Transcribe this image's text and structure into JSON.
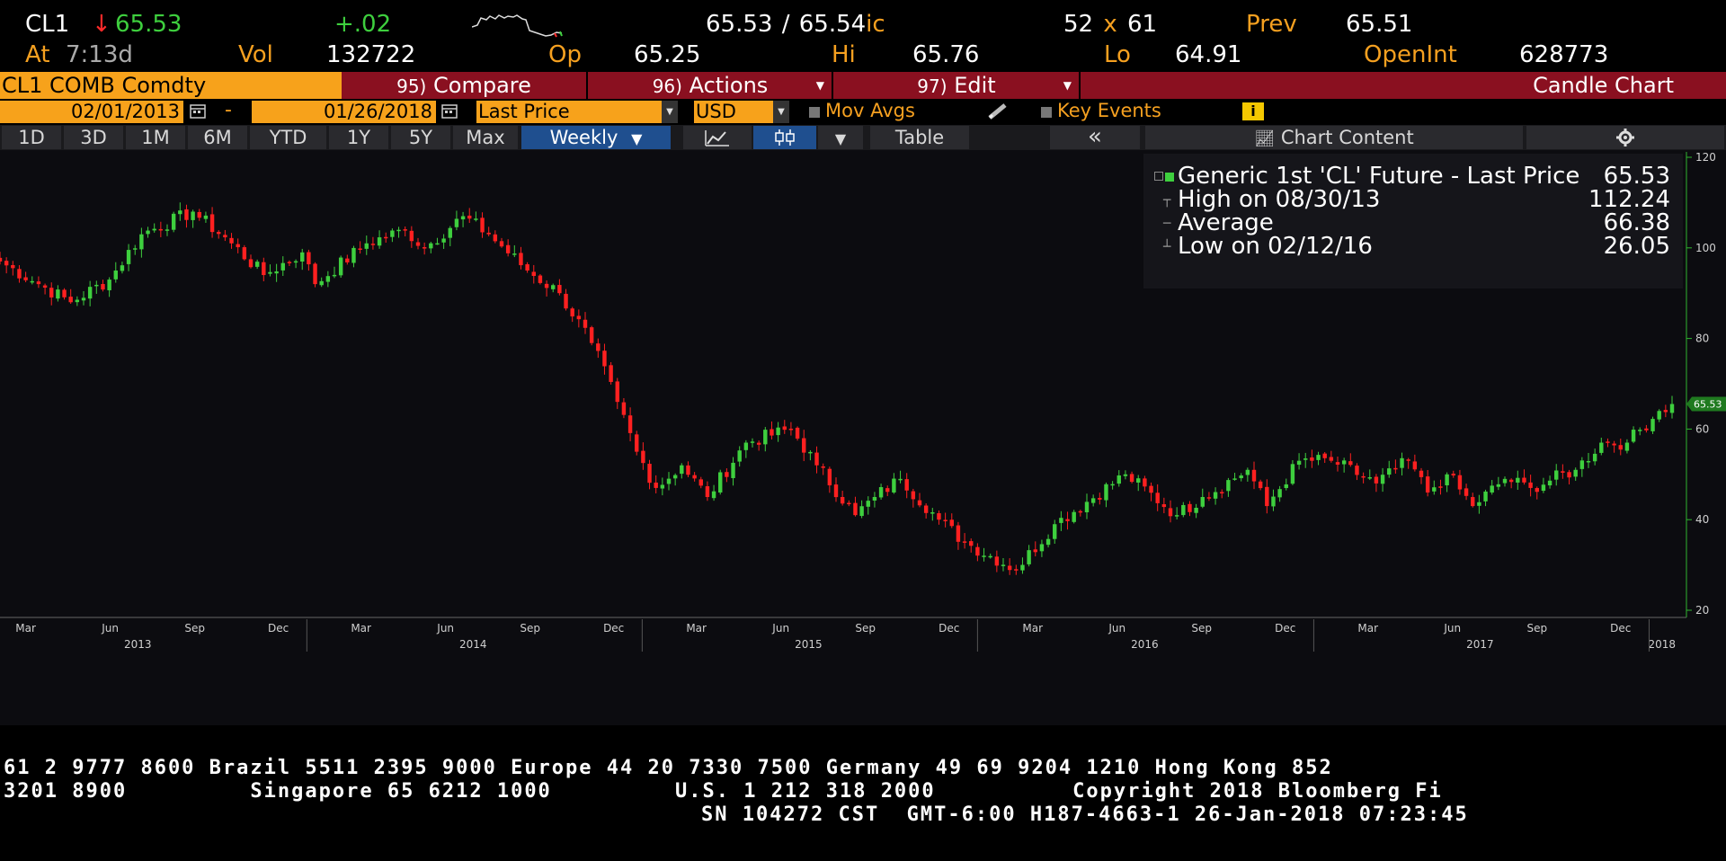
{
  "header": {
    "ticker": "CL1",
    "arrow": "↓",
    "last": "65.53",
    "change": "+.02",
    "bid": "65.53",
    "slash": "/",
    "ask": "65.54",
    "ask_suffix": "ic",
    "size_bid": "52",
    "size_x": "x",
    "size_ask": "61",
    "prev_label": "Prev",
    "prev_value": "65.51",
    "at_label": "At",
    "at_time": "7:13d",
    "vol_label": "Vol",
    "vol_value": "132722",
    "op_label": "Op",
    "op_value": "65.25",
    "hi_label": "Hi",
    "hi_value": "65.76",
    "lo_label": "Lo",
    "lo_value": "64.91",
    "openint_label": "OpenInt",
    "openint_value": "628773"
  },
  "command_bar": {
    "security": "CL1 COMB Comdty",
    "compare_num": "95)",
    "compare": "Compare",
    "actions_num": "96)",
    "actions": "Actions",
    "edit_num": "97)",
    "edit": "Edit",
    "chart_type": "Candle Chart"
  },
  "date_bar": {
    "start_date": "02/01/2013",
    "dash": "-",
    "end_date": "01/26/2018",
    "field": "Last Price",
    "currency": "USD",
    "mov_avgs": "Mov Avgs",
    "key_events": "Key Events",
    "info": "i"
  },
  "period_bar": {
    "periods": [
      "1D",
      "3D",
      "1M",
      "6M",
      "YTD",
      "1Y",
      "5Y",
      "Max"
    ],
    "frequency": "Weekly",
    "table": "Table",
    "collapse": "«",
    "chart_content": "Chart Content"
  },
  "legend": {
    "series": "Generic 1st 'CL' Future - Last Price",
    "series_value": "65.53",
    "high_label": "High on 08/30/13",
    "high_value": "112.24",
    "avg_label": "Average",
    "avg_value": "66.38",
    "low_label": "Low on 02/12/16",
    "low_value": "26.05"
  },
  "footer": {
    "line1": "61 2 9777 8600 Brazil 5511 2395 9000 Europe 44 20 7330 7500 Germany 49 69 9204 1210 Hong Kong 852",
    "line2": "3201 8900         Singapore 65 6212 1000         U.S. 1 212 318 2000          Copyright 2018 Bloomberg Fi",
    "line3": "SN 104272 CST  GMT-6:00 H187-4663-1 26-Jan-2018 07:23:45"
  },
  "colors": {
    "up": "#3ecf3e",
    "down": "#ff2020",
    "accent": "#f7a21b",
    "command_bar": "#8a1020"
  },
  "chart_data": {
    "type": "candlestick",
    "frequency": "weekly",
    "x_range": [
      "2013-02-01",
      "2018-01-26"
    ],
    "ylim": [
      20,
      120
    ],
    "y_ticks": [
      20,
      40,
      60,
      80,
      100,
      120
    ],
    "last_value_label": "65.53",
    "x_month_ticks": [
      "Mar",
      "Jun",
      "Sep",
      "Dec",
      "Mar",
      "Jun",
      "Sep",
      "Dec",
      "Mar",
      "Jun",
      "Sep",
      "Dec",
      "Mar",
      "Jun",
      "Sep",
      "Dec",
      "Mar",
      "Jun",
      "Sep",
      "Dec"
    ],
    "x_year_ticks": [
      "2013",
      "2014",
      "2015",
      "2016",
      "2017",
      "2018"
    ],
    "year_tick_dates": [
      "2013-07-01",
      "2014-07-01",
      "2015-07-01",
      "2016-07-01",
      "2017-07-01",
      "2018-01-15"
    ],
    "month_tick_dates": [
      "2013-03-01",
      "2013-06-01",
      "2013-09-01",
      "2013-12-01",
      "2014-03-01",
      "2014-06-01",
      "2014-09-01",
      "2014-12-01",
      "2015-03-01",
      "2015-06-01",
      "2015-09-01",
      "2015-12-01",
      "2016-03-01",
      "2016-06-01",
      "2016-09-01",
      "2016-12-01",
      "2017-03-01",
      "2017-06-01",
      "2017-09-01",
      "2017-12-01"
    ],
    "series": [
      {
        "name": "Generic 1st 'CL' Future - Last Price",
        "weekly_close_anchors": [
          {
            "date": "2013-02-01",
            "close": 97
          },
          {
            "date": "2013-03-15",
            "close": 92
          },
          {
            "date": "2013-04-19",
            "close": 88
          },
          {
            "date": "2013-05-31",
            "close": 93
          },
          {
            "date": "2013-07-05",
            "close": 103
          },
          {
            "date": "2013-08-30",
            "close": 108
          },
          {
            "date": "2013-10-11",
            "close": 101
          },
          {
            "date": "2013-11-15",
            "close": 94
          },
          {
            "date": "2013-12-27",
            "close": 99
          },
          {
            "date": "2014-01-10",
            "close": 92
          },
          {
            "date": "2014-03-07",
            "close": 101
          },
          {
            "date": "2014-04-18",
            "close": 104
          },
          {
            "date": "2014-05-09",
            "close": 100
          },
          {
            "date": "2014-06-20",
            "close": 107
          },
          {
            "date": "2014-07-18",
            "close": 103
          },
          {
            "date": "2014-08-29",
            "close": 95
          },
          {
            "date": "2014-10-03",
            "close": 90
          },
          {
            "date": "2014-11-07",
            "close": 79
          },
          {
            "date": "2014-12-05",
            "close": 66
          },
          {
            "date": "2014-12-26",
            "close": 55
          },
          {
            "date": "2015-01-16",
            "close": 47
          },
          {
            "date": "2015-02-13",
            "close": 52
          },
          {
            "date": "2015-03-13",
            "close": 45
          },
          {
            "date": "2015-04-24",
            "close": 57
          },
          {
            "date": "2015-06-12",
            "close": 60
          },
          {
            "date": "2015-07-10",
            "close": 52
          },
          {
            "date": "2015-08-21",
            "close": 41
          },
          {
            "date": "2015-09-11",
            "close": 45
          },
          {
            "date": "2015-10-09",
            "close": 49
          },
          {
            "date": "2015-11-20",
            "close": 40
          },
          {
            "date": "2015-12-18",
            "close": 35
          },
          {
            "date": "2016-02-12",
            "close": 29
          },
          {
            "date": "2016-03-25",
            "close": 39
          },
          {
            "date": "2016-06-10",
            "close": 50
          },
          {
            "date": "2016-08-05",
            "close": 41
          },
          {
            "date": "2016-09-02",
            "close": 45
          },
          {
            "date": "2016-10-21",
            "close": 51
          },
          {
            "date": "2016-11-11",
            "close": 43
          },
          {
            "date": "2016-12-16",
            "close": 53
          },
          {
            "date": "2017-01-20",
            "close": 53
          },
          {
            "date": "2017-03-10",
            "close": 48
          },
          {
            "date": "2017-04-14",
            "close": 53
          },
          {
            "date": "2017-05-05",
            "close": 46
          },
          {
            "date": "2017-05-26",
            "close": 50
          },
          {
            "date": "2017-06-23",
            "close": 43
          },
          {
            "date": "2017-07-28",
            "close": 49
          },
          {
            "date": "2017-08-25",
            "close": 47
          },
          {
            "date": "2017-10-13",
            "close": 51
          },
          {
            "date": "2017-11-10",
            "close": 57
          },
          {
            "date": "2017-12-08",
            "close": 57
          },
          {
            "date": "2018-01-12",
            "close": 64
          },
          {
            "date": "2018-01-26",
            "close": 65.53
          }
        ]
      }
    ],
    "high": {
      "date": "2013-08-30",
      "value": 112.24
    },
    "average": 66.38,
    "low": {
      "date": "2016-02-12",
      "value": 26.05
    }
  }
}
